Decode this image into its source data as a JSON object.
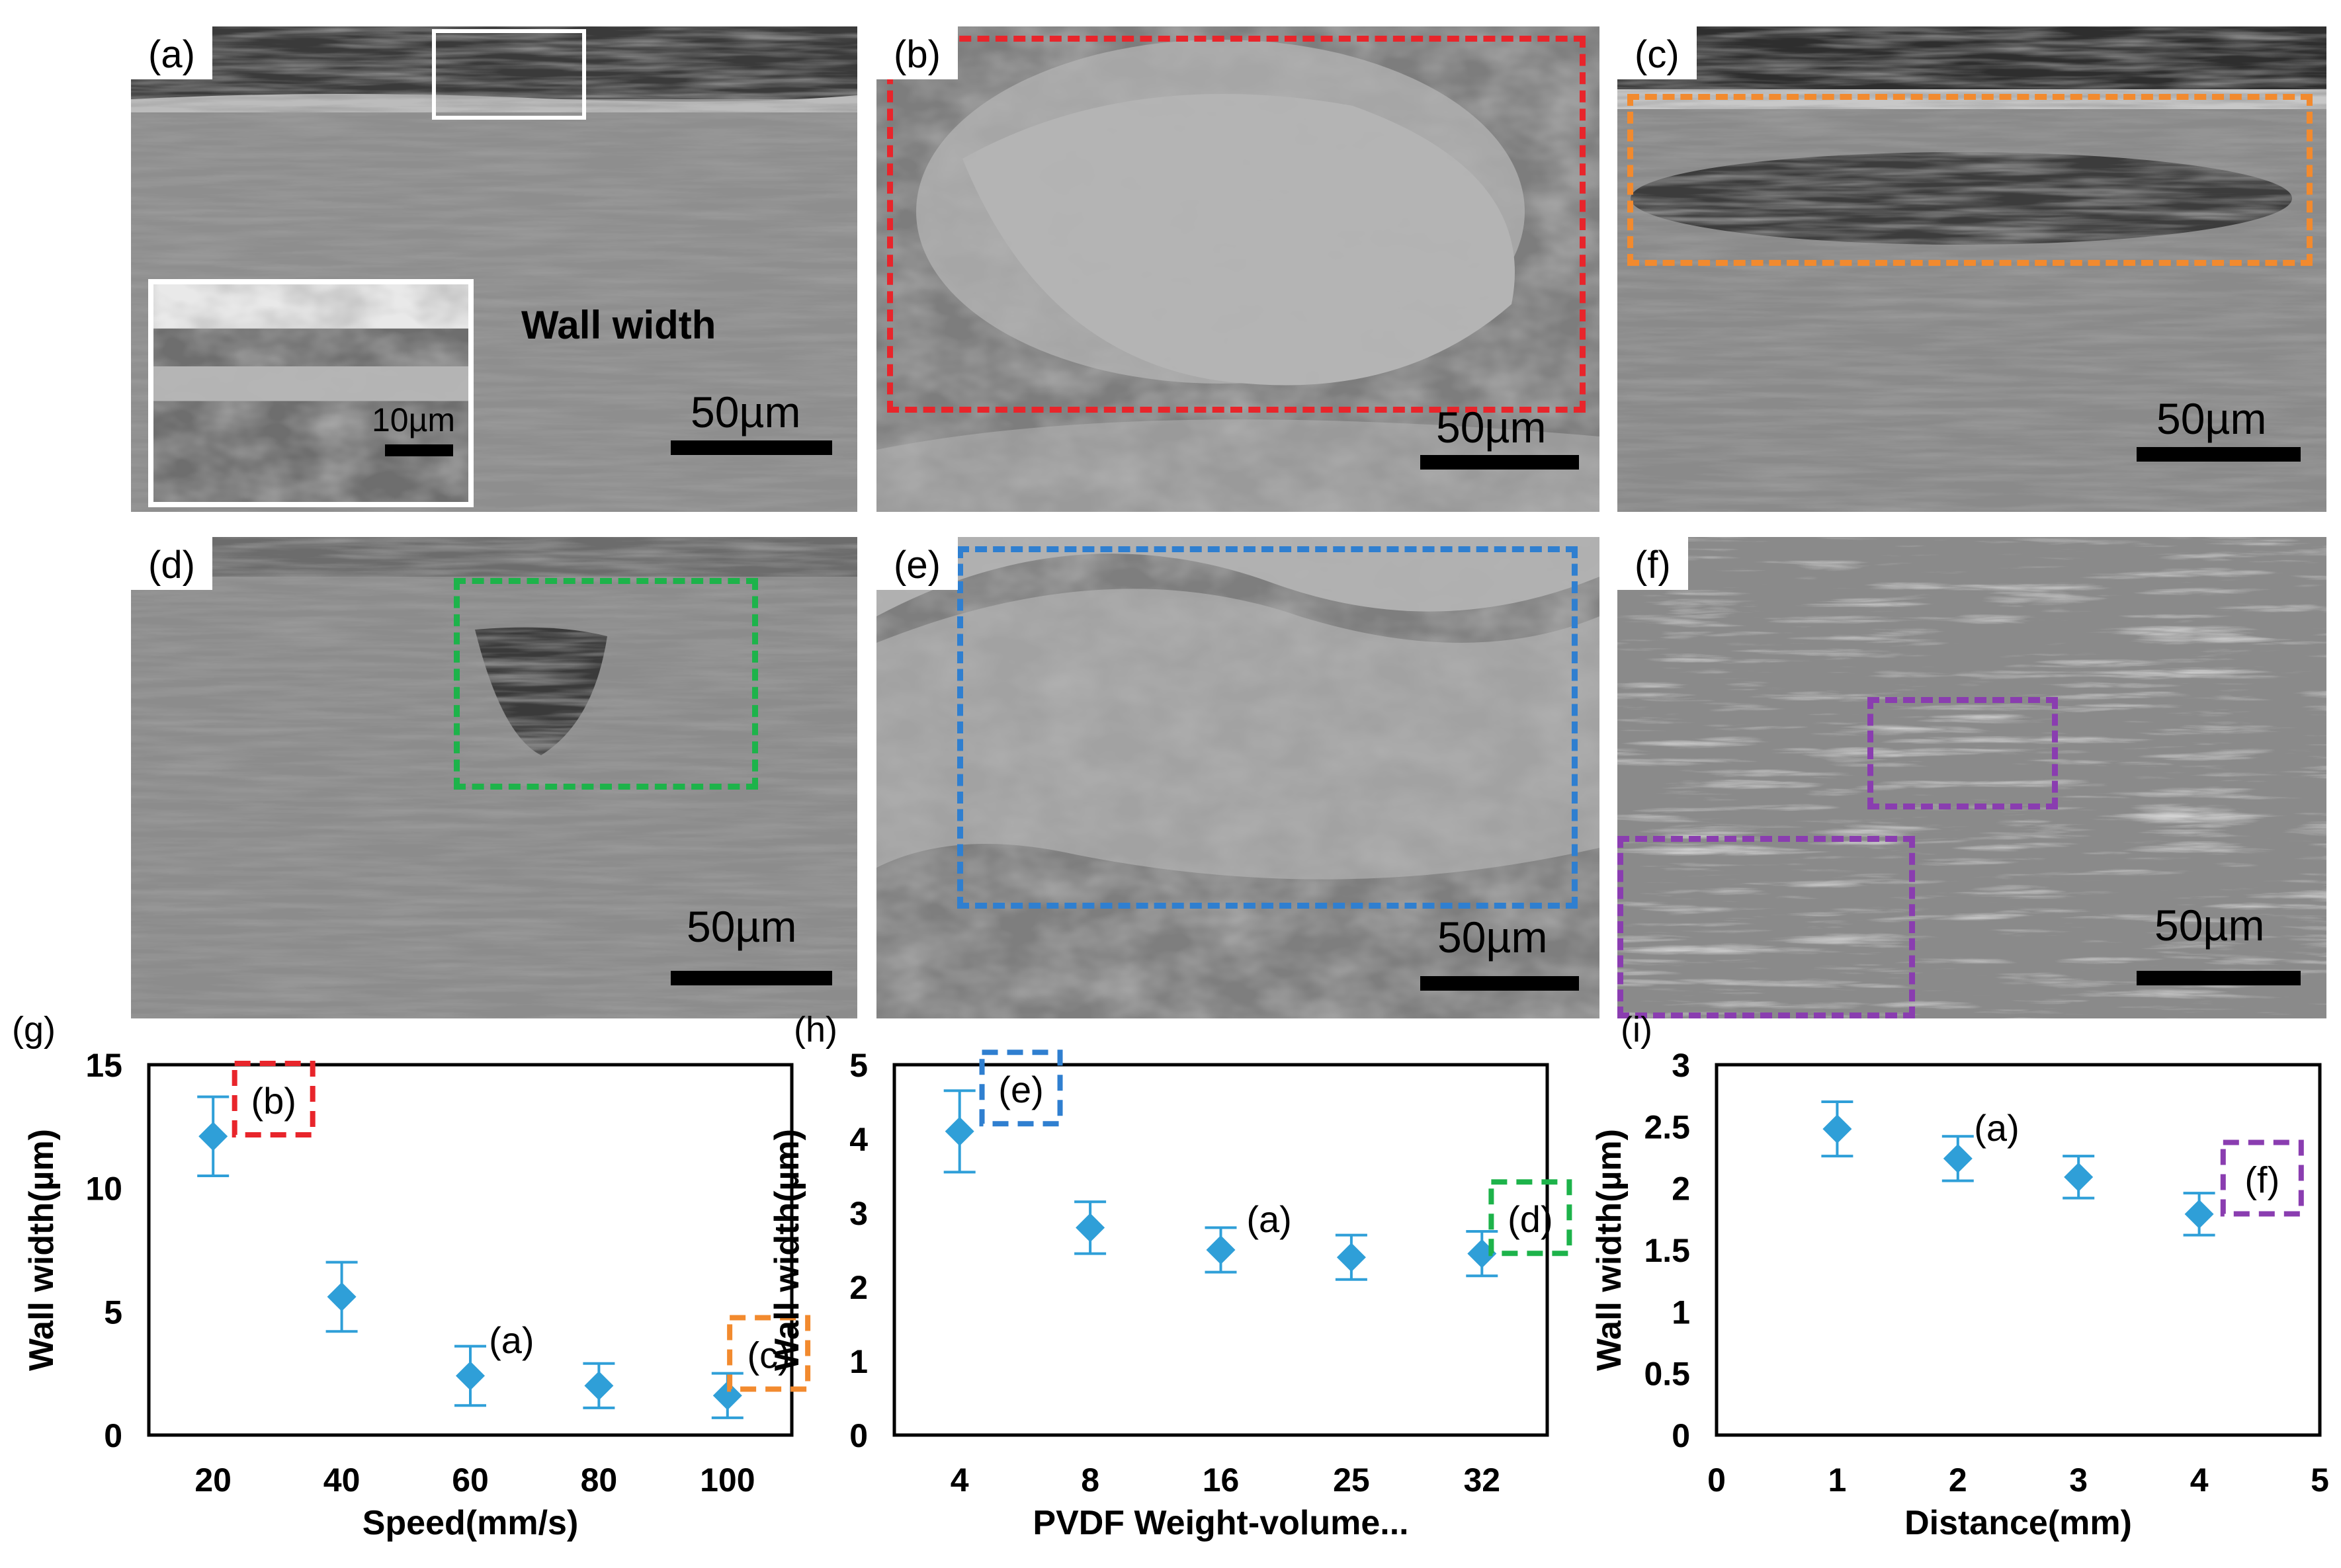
{
  "panels": [
    {
      "label": "(a)",
      "scale_text": "50µm",
      "inset_scale_text": "10µm",
      "annotation": "Wall width"
    },
    {
      "label": "(b)",
      "scale_text": "50µm"
    },
    {
      "label": "(c)",
      "scale_text": "50µm"
    },
    {
      "label": "(d)",
      "scale_text": "50µm"
    },
    {
      "label": "(e)",
      "scale_text": "50µm"
    },
    {
      "label": "(f)",
      "scale_text": "50µm"
    }
  ],
  "colors": {
    "marker": "#2f9fd8",
    "box_b": "#e8252b",
    "box_c": "#f28a2e",
    "box_d": "#1db34a",
    "box_e": "#2f7fd0",
    "box_f": "#8a3db0",
    "inset_border": "#ffffff"
  },
  "chart_data": [
    {
      "type": "scatter",
      "panel_label": "(g)",
      "x_kind": "numeric",
      "x": [
        20,
        40,
        60,
        80,
        100
      ],
      "y": [
        12.1,
        5.6,
        2.4,
        2.0,
        1.6
      ],
      "y_err": [
        1.6,
        1.4,
        1.2,
        0.9,
        0.9
      ],
      "xlabel": "Speed(mm/s)",
      "ylabel": "Wall width(µm)",
      "xlim": [
        10,
        110
      ],
      "ylim": [
        0,
        15
      ],
      "xticks": [
        "20",
        "40",
        "60",
        "80",
        "100"
      ],
      "yticks": [
        "0",
        "5",
        "10",
        "15"
      ],
      "annotations": [
        {
          "text": "(b)",
          "x": 29,
          "y": 13.5,
          "boxed": true,
          "color": "#e8252b"
        },
        {
          "text": "(a)",
          "x": 66,
          "y": 3.8,
          "boxed": false
        },
        {
          "text": "(c)",
          "x": 106,
          "y": 3.2,
          "boxed": true,
          "color": "#f28a2e"
        }
      ]
    },
    {
      "type": "scatter",
      "panel_label": "(h)",
      "x_kind": "categorical",
      "categories": [
        "4",
        "8",
        "16",
        "25",
        "32"
      ],
      "y": [
        4.1,
        2.8,
        2.5,
        2.4,
        2.45
      ],
      "y_err": [
        0.55,
        0.35,
        0.3,
        0.3,
        0.3
      ],
      "xlabel": "PVDF Weight-volume...",
      "ylabel": "Wall width(µm)",
      "ylim": [
        0,
        5
      ],
      "yticks": [
        "0",
        "1",
        "2",
        "3",
        "4",
        "5"
      ],
      "annotations": [
        {
          "text": "(e)",
          "xi": 0.45,
          "y": 4.65,
          "boxed": true,
          "color": "#2f7fd0"
        },
        {
          "text": "(a)",
          "xi": 2.35,
          "y": 2.9,
          "boxed": false
        },
        {
          "text": "(d)",
          "xi": 4.35,
          "y": 2.9,
          "boxed": true,
          "color": "#1db34a"
        }
      ]
    },
    {
      "type": "scatter",
      "panel_label": "(i)",
      "x_kind": "numeric",
      "x": [
        1,
        2,
        3,
        4
      ],
      "y": [
        2.48,
        2.24,
        2.09,
        1.79
      ],
      "y_err": [
        0.22,
        0.18,
        0.17,
        0.17
      ],
      "xlabel": "Distance(mm)",
      "ylabel": "Wall width(µm)",
      "xlim": [
        0,
        5
      ],
      "ylim": [
        0,
        3
      ],
      "xticks": [
        "0",
        "1",
        "2",
        "3",
        "4",
        "5"
      ],
      "yticks": [
        "0",
        "0.5",
        "1",
        "1.5",
        "2",
        "2.5",
        "3"
      ],
      "annotations": [
        {
          "text": "(a)",
          "x": 2.3,
          "y": 2.48,
          "boxed": false
        },
        {
          "text": "(f)",
          "x": 4.5,
          "y": 2.06,
          "boxed": true,
          "color": "#8a3db0"
        }
      ]
    }
  ]
}
